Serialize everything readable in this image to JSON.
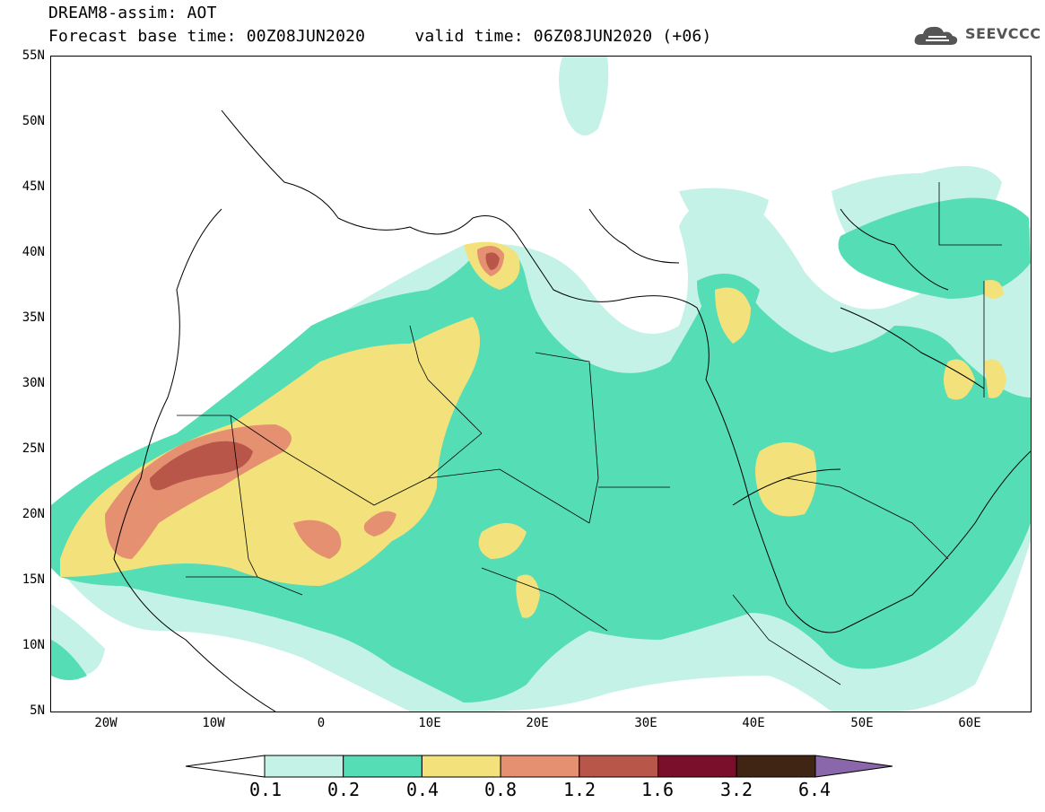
{
  "header": {
    "title_line1": "DREAM8-assim: AOT",
    "title_line2": "Forecast base time: 00Z08JUN2020     valid time: 06Z08JUN2020 (+06)"
  },
  "logo": {
    "text": "SEEVCCC",
    "icon": "cloud-icon"
  },
  "map": {
    "lat_ticks": [
      "55N",
      "50N",
      "45N",
      "40N",
      "35N",
      "30N",
      "25N",
      "20N",
      "15N",
      "10N",
      "5N"
    ],
    "lon_ticks": [
      "20W",
      "10W",
      "0",
      "10E",
      "20E",
      "30E",
      "40E",
      "50E",
      "60E"
    ],
    "colors": {
      "c1": "#c4f2e6",
      "c2": "#55ddb5",
      "c3": "#f3e27c",
      "c4": "#e59070",
      "c5": "#b8564a",
      "c6": "#7a0f2c",
      "c7": "#402414",
      "c8": "#8a66aa"
    }
  },
  "colorbar": {
    "labels": [
      "0.1",
      "0.2",
      "0.4",
      "0.8",
      "1.2",
      "1.6",
      "3.2",
      "6.4"
    ],
    "colors": [
      "#c4f2e6",
      "#55ddb5",
      "#f3e27c",
      "#e59070",
      "#b8564a",
      "#7a0f2c",
      "#402414"
    ],
    "over_color": "#8a66aa",
    "under_color": "#ffffff"
  }
}
